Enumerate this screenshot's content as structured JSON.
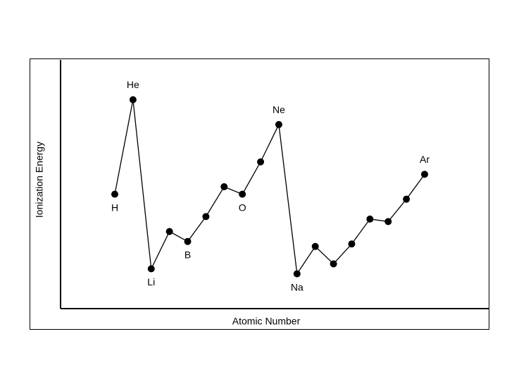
{
  "chart_data": {
    "type": "line",
    "x_label": "Atomic Number",
    "y_label": "Ionization Energy",
    "categories": [
      "H",
      "He",
      "Li",
      null,
      "B",
      null,
      null,
      "O",
      null,
      "Ne",
      "Na",
      null,
      null,
      null,
      null,
      null,
      null,
      "Ar"
    ],
    "values": [
      46,
      84,
      16,
      31,
      27,
      37,
      49,
      46,
      59,
      74,
      14,
      25,
      18,
      26,
      36,
      35,
      44,
      54
    ],
    "ylim": [
      0,
      100
    ],
    "color": "#000000"
  }
}
